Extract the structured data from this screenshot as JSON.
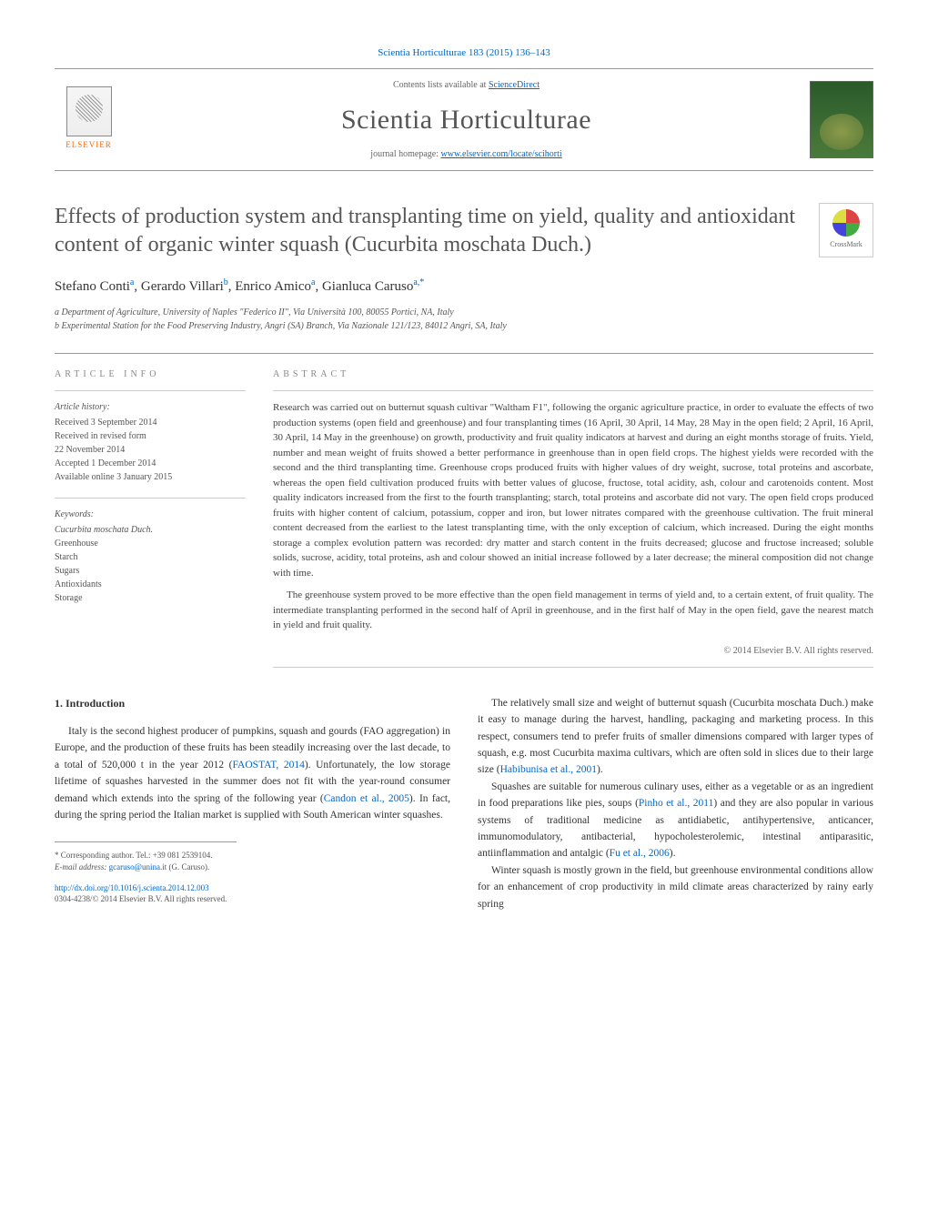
{
  "header": {
    "citation": "Scientia Horticulturae 183 (2015) 136–143",
    "contents_prefix": "Contents lists available at ",
    "contents_link": "ScienceDirect",
    "journal_title": "Scientia Horticulturae",
    "homepage_prefix": "journal homepage: ",
    "homepage_url": "www.elsevier.com/locate/scihorti",
    "publisher_name": "ELSEVIER"
  },
  "article": {
    "title": "Effects of production system and transplanting time on yield, quality and antioxidant content of organic winter squash (Cucurbita moschata Duch.)",
    "crossmark_label": "CrossMark",
    "authors_html": "Stefano Conti<sup>a</sup>, Gerardo Villari<sup>b</sup>, Enrico Amico<sup>a</sup>, Gianluca Caruso<sup>a,*</sup>",
    "affiliations": [
      "a Department of Agriculture, University of Naples \"Federico II\", Via Università 100, 80055 Portici, NA, Italy",
      "b Experimental Station for the Food Preserving Industry, Angri (SA) Branch, Via Nazionale 121/123, 84012 Angri, SA, Italy"
    ]
  },
  "info": {
    "label": "ARTICLE INFO",
    "history_heading": "Article history:",
    "history": [
      "Received 3 September 2014",
      "Received in revised form",
      "22 November 2014",
      "Accepted 1 December 2014",
      "Available online 3 January 2015"
    ],
    "keywords_heading": "Keywords:",
    "keywords": [
      "Cucurbita moschata Duch.",
      "Greenhouse",
      "Starch",
      "Sugars",
      "Antioxidants",
      "Storage"
    ]
  },
  "abstract": {
    "label": "ABSTRACT",
    "paragraphs": [
      "Research was carried out on butternut squash cultivar \"Waltham F1\", following the organic agriculture practice, in order to evaluate the effects of two production systems (open field and greenhouse) and four transplanting times (16 April, 30 April, 14 May, 28 May in the open field; 2 April, 16 April, 30 April, 14 May in the greenhouse) on growth, productivity and fruit quality indicators at harvest and during an eight months storage of fruits. Yield, number and mean weight of fruits showed a better performance in greenhouse than in open field crops. The highest yields were recorded with the second and the third transplanting time. Greenhouse crops produced fruits with higher values of dry weight, sucrose, total proteins and ascorbate, whereas the open field cultivation produced fruits with better values of glucose, fructose, total acidity, ash, colour and carotenoids content. Most quality indicators increased from the first to the fourth transplanting; starch, total proteins and ascorbate did not vary. The open field crops produced fruits with higher content of calcium, potassium, copper and iron, but lower nitrates compared with the greenhouse cultivation. The fruit mineral content decreased from the earliest to the latest transplanting time, with the only exception of calcium, which increased. During the eight months storage a complex evolution pattern was recorded: dry matter and starch content in the fruits decreased; glucose and fructose increased; soluble solids, sucrose, acidity, total proteins, ash and colour showed an initial increase followed by a later decrease; the mineral composition did not change with time.",
      "The greenhouse system proved to be more effective than the open field management in terms of yield and, to a certain extent, of fruit quality. The intermediate transplanting performed in the second half of April in greenhouse, and in the first half of May in the open field, gave the nearest match in yield and fruit quality."
    ],
    "copyright": "© 2014 Elsevier B.V. All rights reserved."
  },
  "body": {
    "section_number": "1.",
    "section_title": "Introduction",
    "left_paragraphs": [
      "Italy is the second highest producer of pumpkins, squash and gourds (FAO aggregation) in Europe, and the production of these fruits has been steadily increasing over the last decade, to a total of 520,000 t in the year 2012 (<a href='#'>FAOSTAT, 2014</a>). Unfortunately, the low storage lifetime of squashes harvested in the summer does not fit with the year-round consumer demand which extends into the spring of the following year (<a href='#'>Candon et al., 2005</a>). In fact, during the spring period the Italian market is supplied with South American winter squashes."
    ],
    "right_paragraphs": [
      "The relatively small size and weight of butternut squash (Cucurbita moschata Duch.) make it easy to manage during the harvest, handling, packaging and marketing process. In this respect, consumers tend to prefer fruits of smaller dimensions compared with larger types of squash, e.g. most Cucurbita maxima cultivars, which are often sold in slices due to their large size (<a href='#'>Habibunisa et al., 2001</a>).",
      "Squashes are suitable for numerous culinary uses, either as a vegetable or as an ingredient in food preparations like pies, soups (<a href='#'>Pinho et al., 2011</a>) and they are also popular in various systems of traditional medicine as antidiabetic, antihypertensive, anticancer, immunomodulatory, antibacterial, hypocholesterolemic, intestinal antiparasitic, antiinflammation and antalgic (<a href='#'>Fu et al., 2006</a>).",
      "Winter squash is mostly grown in the field, but greenhouse environmental conditions allow for an enhancement of crop productivity in mild climate areas characterized by rainy early spring"
    ]
  },
  "footer": {
    "corresponding_label": "* Corresponding author. Tel.: +39 081 2539104.",
    "email_label": "E-mail address: ",
    "email": "gcaruso@unina.it",
    "email_suffix": " (G. Caruso).",
    "doi_url": "http://dx.doi.org/10.1016/j.scienta.2014.12.003",
    "issn_line": "0304-4238/© 2014 Elsevier B.V. All rights reserved."
  },
  "colors": {
    "link": "#0066cc",
    "text": "#333333",
    "muted": "#666666",
    "elsevier_orange": "#ff6600"
  }
}
